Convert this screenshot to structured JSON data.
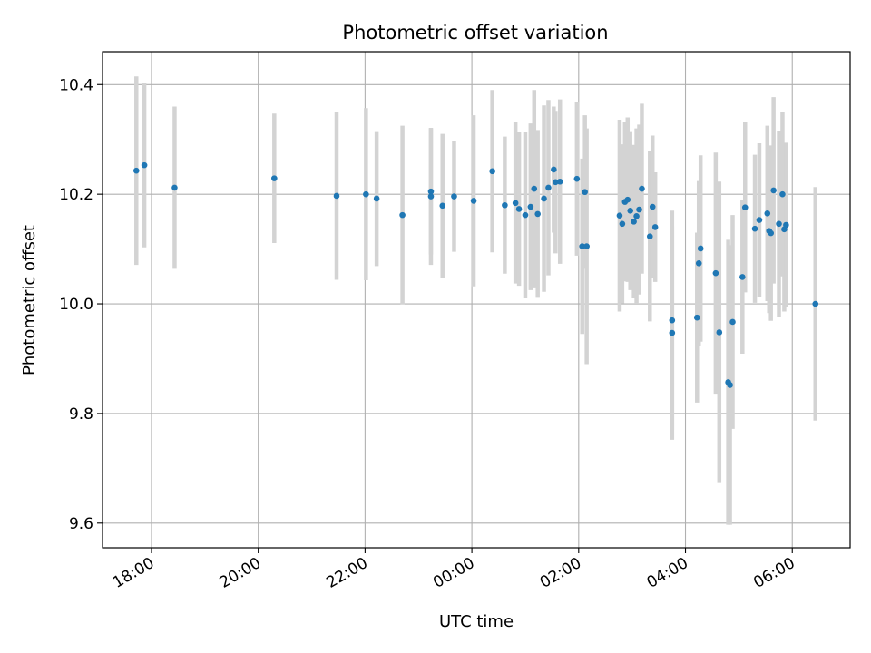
{
  "chart_data": {
    "type": "scatter",
    "title": "Photometric offset variation",
    "xlabel": "UTC time",
    "ylabel": "Photometric offset",
    "grid": true,
    "legend": "none",
    "xlim": [
      "17:05",
      "07:05"
    ],
    "ylim": [
      9.555,
      10.46
    ],
    "x_ticks": [
      "18:00",
      "20:00",
      "22:00",
      "00:00",
      "02:00",
      "04:00",
      "06:00"
    ],
    "y_ticks": [
      "9.6",
      "9.8",
      "10.0",
      "10.2",
      "10.4"
    ],
    "series": [
      {
        "point_color": "#1f77b4",
        "error_color": "#d3d3d3",
        "points": [
          {
            "x": "17:43",
            "y": 10.243,
            "err": 0.172
          },
          {
            "x": "17:52",
            "y": 10.253,
            "err": 0.15
          },
          {
            "x": "18:26",
            "y": 10.212,
            "err": 0.148
          },
          {
            "x": "20:18",
            "y": 10.229,
            "err": 0.118
          },
          {
            "x": "21:28",
            "y": 10.197,
            "err": 0.153
          },
          {
            "x": "22:01",
            "y": 10.2,
            "err": 0.157
          },
          {
            "x": "22:13",
            "y": 10.192,
            "err": 0.123
          },
          {
            "x": "22:42",
            "y": 10.162,
            "err": 0.163
          },
          {
            "x": "23:14",
            "y": 10.205,
            "err": 0.115
          },
          {
            "x": "23:14",
            "y": 10.196,
            "err": 0.125
          },
          {
            "x": "23:27",
            "y": 10.179,
            "err": 0.131
          },
          {
            "x": "23:40",
            "y": 10.196,
            "err": 0.101
          },
          {
            "x": "00:02",
            "y": 10.188,
            "err": 0.156
          },
          {
            "x": "00:23",
            "y": 10.242,
            "err": 0.148
          },
          {
            "x": "00:37",
            "y": 10.18,
            "err": 0.125
          },
          {
            "x": "00:49",
            "y": 10.184,
            "err": 0.147
          },
          {
            "x": "00:53",
            "y": 10.173,
            "err": 0.14
          },
          {
            "x": "01:00",
            "y": 10.162,
            "err": 0.152
          },
          {
            "x": "01:06",
            "y": 10.177,
            "err": 0.152
          },
          {
            "x": "01:10",
            "y": 10.21,
            "err": 0.18
          },
          {
            "x": "01:14",
            "y": 10.164,
            "err": 0.153
          },
          {
            "x": "01:21",
            "y": 10.192,
            "err": 0.17
          },
          {
            "x": "01:26",
            "y": 10.212,
            "err": 0.16
          },
          {
            "x": "01:32",
            "y": 10.245,
            "err": 0.115
          },
          {
            "x": "01:34",
            "y": 10.222,
            "err": 0.13
          },
          {
            "x": "01:39",
            "y": 10.223,
            "err": 0.15
          },
          {
            "x": "01:58",
            "y": 10.228,
            "err": 0.14
          },
          {
            "x": "02:04",
            "y": 10.105,
            "err": 0.16
          },
          {
            "x": "02:07",
            "y": 10.204,
            "err": 0.14
          },
          {
            "x": "02:09",
            "y": 10.105,
            "err": 0.215
          },
          {
            "x": "02:46",
            "y": 10.161,
            "err": 0.175
          },
          {
            "x": "02:49",
            "y": 10.146,
            "err": 0.145
          },
          {
            "x": "02:52",
            "y": 10.186,
            "err": 0.145
          },
          {
            "x": "02:55",
            "y": 10.19,
            "err": 0.15
          },
          {
            "x": "02:58",
            "y": 10.17,
            "err": 0.145
          },
          {
            "x": "03:02",
            "y": 10.15,
            "err": 0.14
          },
          {
            "x": "03:05",
            "y": 10.16,
            "err": 0.16
          },
          {
            "x": "03:08",
            "y": 10.172,
            "err": 0.155
          },
          {
            "x": "03:11",
            "y": 10.21,
            "err": 0.155
          },
          {
            "x": "03:20",
            "y": 10.123,
            "err": 0.155
          },
          {
            "x": "03:23",
            "y": 10.177,
            "err": 0.13
          },
          {
            "x": "03:26",
            "y": 10.14,
            "err": 0.1
          },
          {
            "x": "03:45",
            "y": 9.947,
            "err": 0.195
          },
          {
            "x": "03:45",
            "y": 9.97,
            "err": 0.2
          },
          {
            "x": "04:13",
            "y": 9.975,
            "err": 0.155
          },
          {
            "x": "04:15",
            "y": 10.074,
            "err": 0.15
          },
          {
            "x": "04:17",
            "y": 10.101,
            "err": 0.17
          },
          {
            "x": "04:34",
            "y": 10.056,
            "err": 0.22
          },
          {
            "x": "04:38",
            "y": 9.948,
            "err": 0.275
          },
          {
            "x": "04:48",
            "y": 9.857,
            "err": 0.26
          },
          {
            "x": "04:50",
            "y": 9.852,
            "err": 0.255
          },
          {
            "x": "04:53",
            "y": 9.967,
            "err": 0.195
          },
          {
            "x": "05:04",
            "y": 10.049,
            "err": 0.14
          },
          {
            "x": "05:07",
            "y": 10.176,
            "err": 0.155
          },
          {
            "x": "05:18",
            "y": 10.137,
            "err": 0.135
          },
          {
            "x": "05:23",
            "y": 10.153,
            "err": 0.14
          },
          {
            "x": "05:32",
            "y": 10.165,
            "err": 0.16
          },
          {
            "x": "05:34",
            "y": 10.133,
            "err": 0.15
          },
          {
            "x": "05:36",
            "y": 10.129,
            "err": 0.16
          },
          {
            "x": "05:39",
            "y": 10.207,
            "err": 0.17
          },
          {
            "x": "05:45",
            "y": 10.146,
            "err": 0.17
          },
          {
            "x": "05:49",
            "y": 10.2,
            "err": 0.15
          },
          {
            "x": "05:51",
            "y": 10.136,
            "err": 0.15
          },
          {
            "x": "05:53",
            "y": 10.144,
            "err": 0.15
          },
          {
            "x": "06:26",
            "y": 10.0,
            "err": 0.213
          }
        ]
      }
    ]
  }
}
